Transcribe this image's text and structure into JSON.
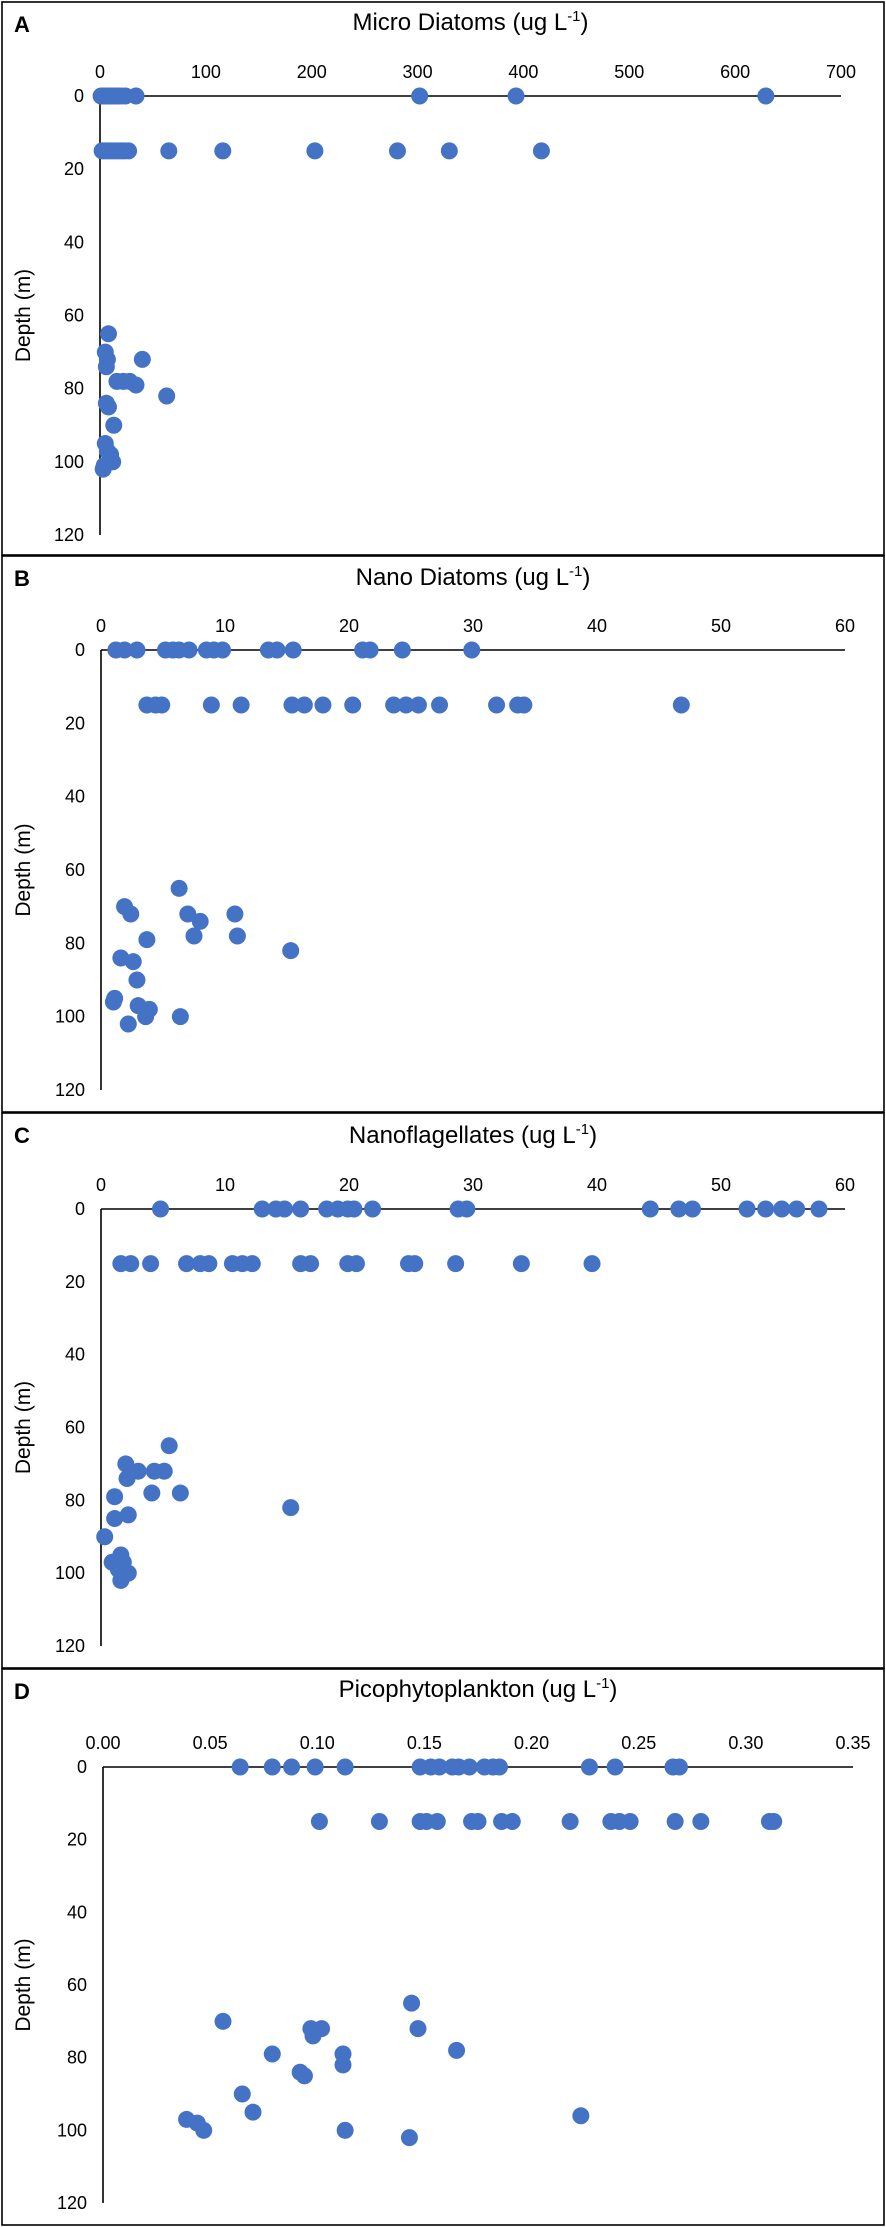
{
  "chart_data": [
    {
      "type": "scatter",
      "panel": "A",
      "title": "Micro Diatoms (ug L",
      "title_sup": "-1",
      "ylabel": "Depth (m)",
      "xlim": [
        0,
        700
      ],
      "xticks": [
        0,
        100,
        200,
        300,
        400,
        500,
        600,
        700
      ],
      "xtick_labels": [
        "0",
        "100",
        "200",
        "300",
        "400",
        "500",
        "600",
        "700"
      ],
      "ylim": [
        0,
        120
      ],
      "yticks": [
        0,
        20,
        40,
        60,
        80,
        100,
        120
      ],
      "ytick_labels": [
        "0",
        "20",
        "40",
        "60",
        "80",
        "100",
        "120"
      ],
      "color": "#4472C4",
      "points": [
        {
          "x": 1,
          "y": 0
        },
        {
          "x": 3,
          "y": 0
        },
        {
          "x": 5,
          "y": 0
        },
        {
          "x": 7,
          "y": 0
        },
        {
          "x": 9,
          "y": 0
        },
        {
          "x": 11,
          "y": 0
        },
        {
          "x": 13,
          "y": 0
        },
        {
          "x": 15,
          "y": 0
        },
        {
          "x": 17,
          "y": 0
        },
        {
          "x": 20,
          "y": 0
        },
        {
          "x": 24,
          "y": 0
        },
        {
          "x": 34,
          "y": 0
        },
        {
          "x": 302,
          "y": 0
        },
        {
          "x": 393,
          "y": 0
        },
        {
          "x": 629,
          "y": 0
        },
        {
          "x": 2,
          "y": 15
        },
        {
          "x": 5,
          "y": 15
        },
        {
          "x": 8,
          "y": 15
        },
        {
          "x": 11,
          "y": 15
        },
        {
          "x": 14,
          "y": 15
        },
        {
          "x": 17,
          "y": 15
        },
        {
          "x": 20,
          "y": 15
        },
        {
          "x": 23,
          "y": 15
        },
        {
          "x": 27,
          "y": 15
        },
        {
          "x": 65,
          "y": 15
        },
        {
          "x": 116,
          "y": 15
        },
        {
          "x": 203,
          "y": 15
        },
        {
          "x": 281,
          "y": 15
        },
        {
          "x": 330,
          "y": 15
        },
        {
          "x": 417,
          "y": 15
        },
        {
          "x": 8,
          "y": 65
        },
        {
          "x": 5,
          "y": 70
        },
        {
          "x": 7,
          "y": 72
        },
        {
          "x": 6,
          "y": 74
        },
        {
          "x": 40,
          "y": 72
        },
        {
          "x": 16,
          "y": 78
        },
        {
          "x": 22,
          "y": 78
        },
        {
          "x": 28,
          "y": 78
        },
        {
          "x": 34,
          "y": 79
        },
        {
          "x": 63,
          "y": 82
        },
        {
          "x": 6,
          "y": 84
        },
        {
          "x": 8,
          "y": 85
        },
        {
          "x": 13,
          "y": 90
        },
        {
          "x": 5,
          "y": 95
        },
        {
          "x": 7,
          "y": 97
        },
        {
          "x": 10,
          "y": 98
        },
        {
          "x": 12,
          "y": 100
        },
        {
          "x": 4,
          "y": 101
        },
        {
          "x": 3,
          "y": 102
        }
      ]
    },
    {
      "type": "scatter",
      "panel": "B",
      "title": "Nano Diatoms (ug L",
      "title_sup": "-1",
      "ylabel": "Depth (m)",
      "xlim": [
        0,
        60
      ],
      "xticks": [
        0,
        10,
        20,
        30,
        40,
        50,
        60
      ],
      "xtick_labels": [
        "0",
        "10",
        "20",
        "30",
        "40",
        "50",
        "60"
      ],
      "ylim": [
        0,
        120
      ],
      "yticks": [
        0,
        20,
        40,
        60,
        80,
        100,
        120
      ],
      "ytick_labels": [
        "0",
        "20",
        "40",
        "60",
        "80",
        "100",
        "120"
      ],
      "color": "#4472C4",
      "points": [
        {
          "x": 1.2,
          "y": 0
        },
        {
          "x": 1.9,
          "y": 0
        },
        {
          "x": 2.9,
          "y": 0
        },
        {
          "x": 5.2,
          "y": 0
        },
        {
          "x": 5.8,
          "y": 0
        },
        {
          "x": 6.3,
          "y": 0
        },
        {
          "x": 7.1,
          "y": 0
        },
        {
          "x": 8.5,
          "y": 0
        },
        {
          "x": 9.1,
          "y": 0
        },
        {
          "x": 9.8,
          "y": 0
        },
        {
          "x": 13.5,
          "y": 0
        },
        {
          "x": 14.2,
          "y": 0
        },
        {
          "x": 15.5,
          "y": 0
        },
        {
          "x": 21.1,
          "y": 0
        },
        {
          "x": 21.7,
          "y": 0
        },
        {
          "x": 24.3,
          "y": 0
        },
        {
          "x": 29.9,
          "y": 0
        },
        {
          "x": 3.7,
          "y": 15
        },
        {
          "x": 4.4,
          "y": 15
        },
        {
          "x": 4.9,
          "y": 15
        },
        {
          "x": 8.9,
          "y": 15
        },
        {
          "x": 11.3,
          "y": 15
        },
        {
          "x": 15.4,
          "y": 15
        },
        {
          "x": 16.4,
          "y": 15
        },
        {
          "x": 17.9,
          "y": 15
        },
        {
          "x": 20.3,
          "y": 15
        },
        {
          "x": 23.6,
          "y": 15
        },
        {
          "x": 24.6,
          "y": 15
        },
        {
          "x": 25.6,
          "y": 15
        },
        {
          "x": 27.3,
          "y": 15
        },
        {
          "x": 31.9,
          "y": 15
        },
        {
          "x": 33.6,
          "y": 15
        },
        {
          "x": 34.1,
          "y": 15
        },
        {
          "x": 46.8,
          "y": 15
        },
        {
          "x": 6.3,
          "y": 65
        },
        {
          "x": 1.9,
          "y": 70
        },
        {
          "x": 2.4,
          "y": 72
        },
        {
          "x": 7.0,
          "y": 72
        },
        {
          "x": 10.8,
          "y": 72
        },
        {
          "x": 8.0,
          "y": 74
        },
        {
          "x": 7.5,
          "y": 78
        },
        {
          "x": 11.0,
          "y": 78
        },
        {
          "x": 3.7,
          "y": 79
        },
        {
          "x": 15.3,
          "y": 82
        },
        {
          "x": 1.6,
          "y": 84
        },
        {
          "x": 2.6,
          "y": 85
        },
        {
          "x": 2.9,
          "y": 90
        },
        {
          "x": 1.1,
          "y": 95
        },
        {
          "x": 1.0,
          "y": 96
        },
        {
          "x": 3.0,
          "y": 97
        },
        {
          "x": 3.9,
          "y": 98
        },
        {
          "x": 3.6,
          "y": 100
        },
        {
          "x": 6.4,
          "y": 100
        },
        {
          "x": 2.2,
          "y": 102
        }
      ]
    },
    {
      "type": "scatter",
      "panel": "C",
      "title": "Nanoflagellates (ug L",
      "title_sup": "-1",
      "ylabel": "Depth (m)",
      "xlim": [
        0,
        60
      ],
      "xticks": [
        0,
        10,
        20,
        30,
        40,
        50,
        60
      ],
      "xtick_labels": [
        "0",
        "10",
        "20",
        "30",
        "40",
        "50",
        "60"
      ],
      "ylim": [
        0,
        120
      ],
      "yticks": [
        0,
        20,
        40,
        60,
        80,
        100,
        120
      ],
      "ytick_labels": [
        "0",
        "20",
        "40",
        "60",
        "80",
        "100",
        "120"
      ],
      "color": "#4472C4",
      "points": [
        {
          "x": 4.8,
          "y": 0
        },
        {
          "x": 13.0,
          "y": 0
        },
        {
          "x": 14.1,
          "y": 0
        },
        {
          "x": 14.8,
          "y": 0
        },
        {
          "x": 16.1,
          "y": 0
        },
        {
          "x": 18.2,
          "y": 0
        },
        {
          "x": 19.1,
          "y": 0
        },
        {
          "x": 19.9,
          "y": 0
        },
        {
          "x": 20.4,
          "y": 0
        },
        {
          "x": 21.9,
          "y": 0
        },
        {
          "x": 28.8,
          "y": 0
        },
        {
          "x": 29.5,
          "y": 0
        },
        {
          "x": 44.3,
          "y": 0
        },
        {
          "x": 46.6,
          "y": 0
        },
        {
          "x": 47.7,
          "y": 0
        },
        {
          "x": 52.1,
          "y": 0
        },
        {
          "x": 53.6,
          "y": 0
        },
        {
          "x": 54.9,
          "y": 0
        },
        {
          "x": 56.1,
          "y": 0
        },
        {
          "x": 57.9,
          "y": 0
        },
        {
          "x": 1.6,
          "y": 15
        },
        {
          "x": 2.4,
          "y": 15
        },
        {
          "x": 4.0,
          "y": 15
        },
        {
          "x": 6.9,
          "y": 15
        },
        {
          "x": 8.0,
          "y": 15
        },
        {
          "x": 8.7,
          "y": 15
        },
        {
          "x": 10.6,
          "y": 15
        },
        {
          "x": 11.4,
          "y": 15
        },
        {
          "x": 12.2,
          "y": 15
        },
        {
          "x": 16.1,
          "y": 15
        },
        {
          "x": 16.9,
          "y": 15
        },
        {
          "x": 19.9,
          "y": 15
        },
        {
          "x": 20.6,
          "y": 15
        },
        {
          "x": 24.8,
          "y": 15
        },
        {
          "x": 25.3,
          "y": 15
        },
        {
          "x": 28.6,
          "y": 15
        },
        {
          "x": 33.9,
          "y": 15
        },
        {
          "x": 39.6,
          "y": 15
        },
        {
          "x": 5.5,
          "y": 65
        },
        {
          "x": 2.0,
          "y": 70
        },
        {
          "x": 3.0,
          "y": 72
        },
        {
          "x": 4.3,
          "y": 72
        },
        {
          "x": 5.1,
          "y": 72
        },
        {
          "x": 2.1,
          "y": 74
        },
        {
          "x": 4.1,
          "y": 78
        },
        {
          "x": 6.4,
          "y": 78
        },
        {
          "x": 1.1,
          "y": 79
        },
        {
          "x": 15.3,
          "y": 82
        },
        {
          "x": 2.2,
          "y": 84
        },
        {
          "x": 1.1,
          "y": 85
        },
        {
          "x": 0.3,
          "y": 90
        },
        {
          "x": 1.6,
          "y": 95
        },
        {
          "x": 0.9,
          "y": 97
        },
        {
          "x": 1.8,
          "y": 97
        },
        {
          "x": 1.4,
          "y": 99
        },
        {
          "x": 2.2,
          "y": 100
        },
        {
          "x": 1.6,
          "y": 102
        }
      ]
    },
    {
      "type": "scatter",
      "panel": "D",
      "title": "Picophytoplankton (ug L",
      "title_sup": "-1",
      "ylabel": "Depth (m)",
      "xlim": [
        0,
        0.35
      ],
      "xticks": [
        0,
        0.05,
        0.1,
        0.15,
        0.2,
        0.25,
        0.3,
        0.35
      ],
      "xtick_labels": [
        "0.00",
        "0.05",
        "0.10",
        "0.15",
        "0.20",
        "0.25",
        "0.30",
        "0.35"
      ],
      "ylim": [
        0,
        120
      ],
      "yticks": [
        0,
        20,
        40,
        60,
        80,
        100,
        120
      ],
      "ytick_labels": [
        "0",
        "20",
        "40",
        "60",
        "80",
        "100",
        "120"
      ],
      "color": "#4472C4",
      "points": [
        {
          "x": 0.064,
          "y": 0
        },
        {
          "x": 0.079,
          "y": 0
        },
        {
          "x": 0.088,
          "y": 0
        },
        {
          "x": 0.099,
          "y": 0
        },
        {
          "x": 0.113,
          "y": 0
        },
        {
          "x": 0.148,
          "y": 0
        },
        {
          "x": 0.153,
          "y": 0
        },
        {
          "x": 0.157,
          "y": 0
        },
        {
          "x": 0.163,
          "y": 0
        },
        {
          "x": 0.166,
          "y": 0
        },
        {
          "x": 0.171,
          "y": 0
        },
        {
          "x": 0.178,
          "y": 0
        },
        {
          "x": 0.182,
          "y": 0
        },
        {
          "x": 0.185,
          "y": 0
        },
        {
          "x": 0.227,
          "y": 0
        },
        {
          "x": 0.239,
          "y": 0
        },
        {
          "x": 0.266,
          "y": 0
        },
        {
          "x": 0.269,
          "y": 0
        },
        {
          "x": 0.101,
          "y": 15
        },
        {
          "x": 0.129,
          "y": 15
        },
        {
          "x": 0.148,
          "y": 15
        },
        {
          "x": 0.151,
          "y": 15
        },
        {
          "x": 0.156,
          "y": 15
        },
        {
          "x": 0.172,
          "y": 15
        },
        {
          "x": 0.175,
          "y": 15
        },
        {
          "x": 0.186,
          "y": 15
        },
        {
          "x": 0.191,
          "y": 15
        },
        {
          "x": 0.218,
          "y": 15
        },
        {
          "x": 0.237,
          "y": 15
        },
        {
          "x": 0.241,
          "y": 15
        },
        {
          "x": 0.246,
          "y": 15
        },
        {
          "x": 0.267,
          "y": 15
        },
        {
          "x": 0.279,
          "y": 15
        },
        {
          "x": 0.311,
          "y": 15
        },
        {
          "x": 0.313,
          "y": 15
        },
        {
          "x": 0.144,
          "y": 65
        },
        {
          "x": 0.056,
          "y": 70
        },
        {
          "x": 0.097,
          "y": 72
        },
        {
          "x": 0.102,
          "y": 72
        },
        {
          "x": 0.147,
          "y": 72
        },
        {
          "x": 0.098,
          "y": 74
        },
        {
          "x": 0.079,
          "y": 79
        },
        {
          "x": 0.165,
          "y": 78
        },
        {
          "x": 0.112,
          "y": 79
        },
        {
          "x": 0.112,
          "y": 82
        },
        {
          "x": 0.092,
          "y": 84
        },
        {
          "x": 0.094,
          "y": 85
        },
        {
          "x": 0.065,
          "y": 90
        },
        {
          "x": 0.07,
          "y": 95
        },
        {
          "x": 0.223,
          "y": 96
        },
        {
          "x": 0.039,
          "y": 97
        },
        {
          "x": 0.044,
          "y": 98
        },
        {
          "x": 0.047,
          "y": 100
        },
        {
          "x": 0.113,
          "y": 100
        },
        {
          "x": 0.143,
          "y": 102
        }
      ]
    }
  ]
}
